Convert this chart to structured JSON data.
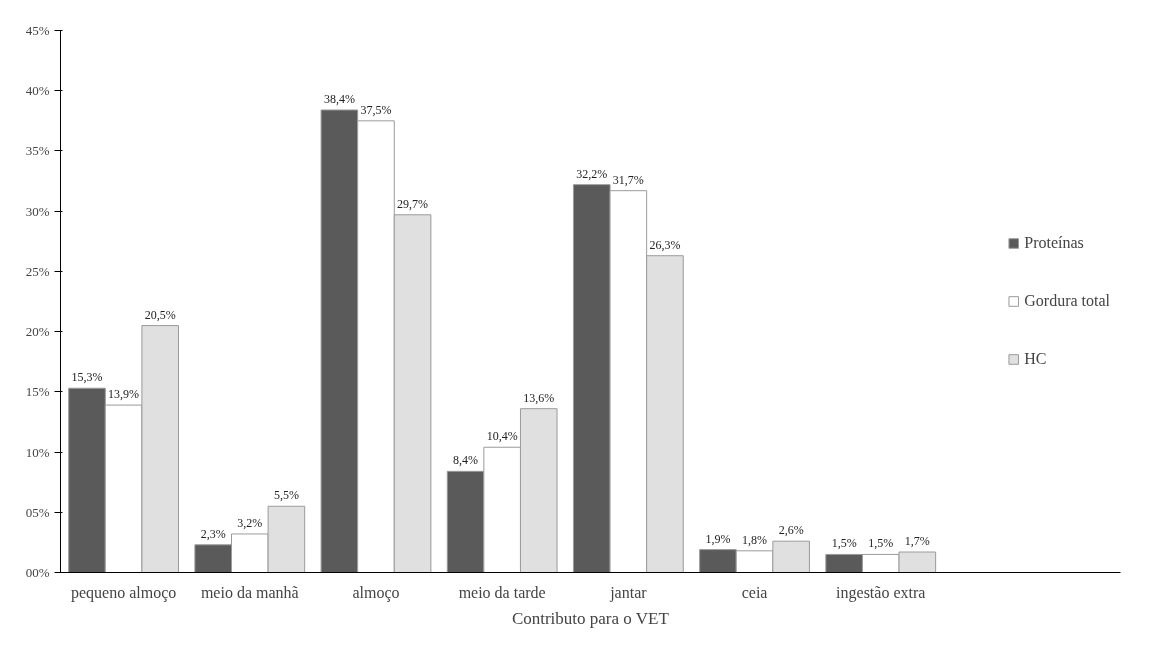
{
  "chart_data": {
    "type": "bar",
    "xlabel": "Contributo para o VET",
    "categories": [
      "pequeno almoço",
      "meio da manhã",
      "almoço",
      "meio da tarde",
      "jantar",
      "ceia",
      "ingestão extra"
    ],
    "series": [
      {
        "name": "Proteínas",
        "color": "#5a5a5a",
        "values": [
          15.3,
          2.3,
          38.4,
          8.4,
          32.2,
          1.9,
          1.5
        ],
        "value_labels": [
          "15,3%",
          "2,3%",
          "38,4%",
          "8,4%",
          "32,2%",
          "1,9%",
          "1,5%"
        ]
      },
      {
        "name": "Gordura total",
        "color": "#ffffff",
        "values": [
          13.9,
          3.2,
          37.5,
          10.4,
          31.7,
          1.8,
          1.5
        ],
        "value_labels": [
          "13,9%",
          "3,2%",
          "37,5%",
          "10,4%",
          "31,7%",
          "1,8%",
          "1,5%"
        ]
      },
      {
        "name": "HC",
        "color": "#e0e0e0",
        "values": [
          20.5,
          5.5,
          29.7,
          13.6,
          26.3,
          2.6,
          1.7
        ],
        "value_labels": [
          "20,5%",
          "5,5%",
          "29,7%",
          "13,6%",
          "26,3%",
          "2,6%",
          "1,7%"
        ]
      }
    ],
    "ylim": [
      0,
      45
    ],
    "yticks": [
      {
        "value": 0,
        "label": "00%"
      },
      {
        "value": 5,
        "label": "05%"
      },
      {
        "value": 10,
        "label": "10%"
      },
      {
        "value": 15,
        "label": "15%"
      },
      {
        "value": 20,
        "label": "20%"
      },
      {
        "value": 25,
        "label": "25%"
      },
      {
        "value": 30,
        "label": "30%"
      },
      {
        "value": 35,
        "label": "35%"
      },
      {
        "value": 40,
        "label": "40%"
      },
      {
        "value": 45,
        "label": "45%"
      }
    ],
    "grid": false,
    "legend": "right"
  }
}
